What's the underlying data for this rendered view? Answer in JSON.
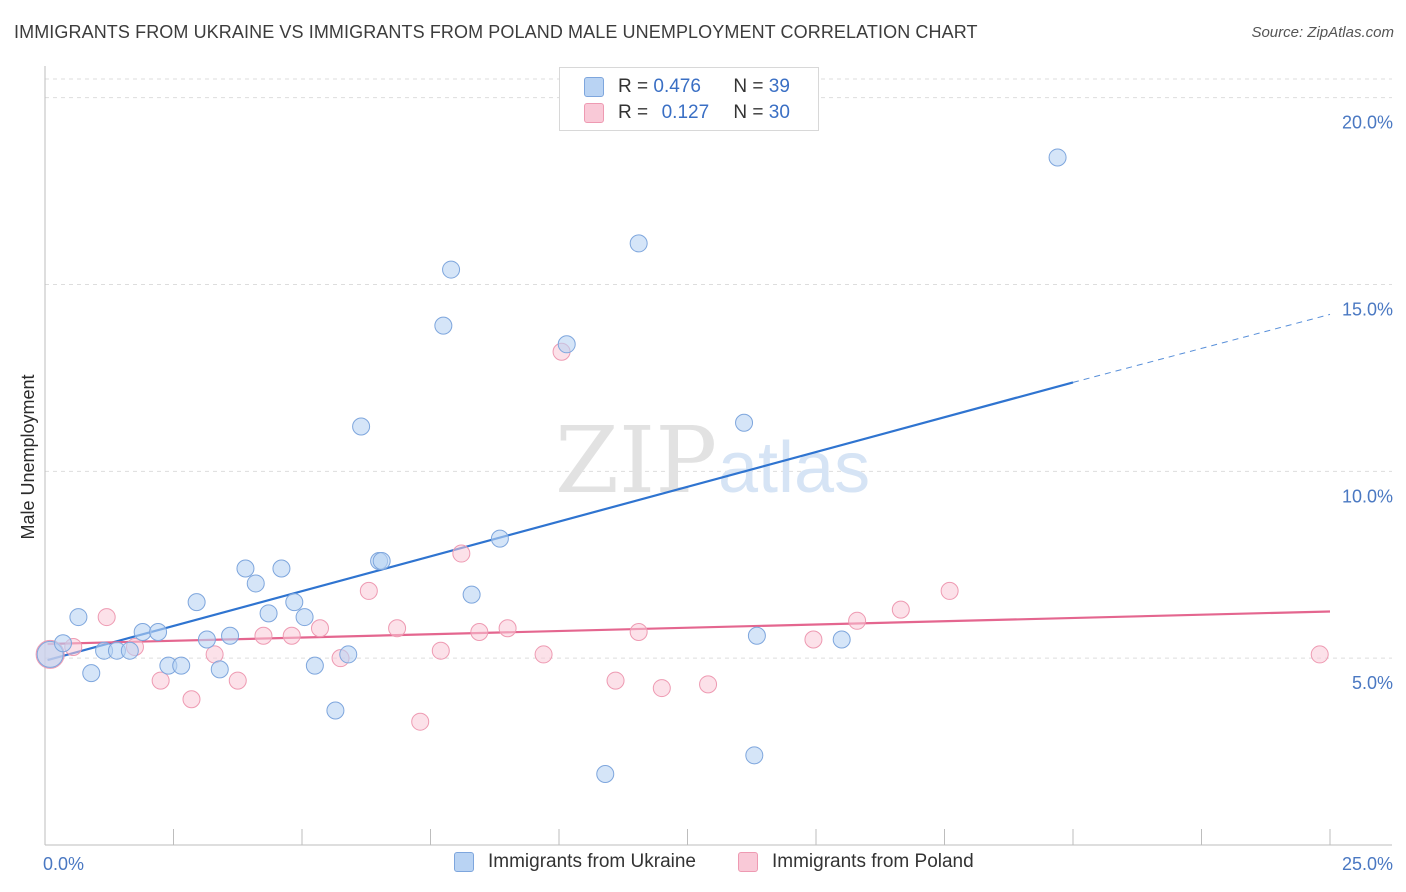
{
  "title": "IMMIGRANTS FROM UKRAINE VS IMMIGRANTS FROM POLAND MALE UNEMPLOYMENT CORRELATION CHART",
  "source": "Source: ZipAtlas.com",
  "watermark": {
    "zip": "ZIP",
    "atlas": "atlas"
  },
  "legend": {
    "ukraine": {
      "r_label": "R =",
      "r_value": "0.476",
      "n_label": "N =",
      "n_value": "39"
    },
    "poland": {
      "r_label": "R =",
      "r_value": "0.127",
      "n_label": "N =",
      "n_value": "30"
    }
  },
  "bottom_legend": {
    "ukraine": "Immigrants from Ukraine",
    "poland": "Immigrants from Poland"
  },
  "colors": {
    "ukraine_fill": "#b9d3f3",
    "ukraine_stroke": "#7ea6dd",
    "ukraine_line": "#2f74d0",
    "poland_fill": "#f9c9d7",
    "poland_stroke": "#ee9ab2",
    "poland_line": "#e4668f",
    "tick_text": "#4a78c2",
    "grid": "#dddddd"
  },
  "chart_data": {
    "type": "scatter",
    "title": "IMMIGRANTS FROM UKRAINE VS IMMIGRANTS FROM POLAND MALE UNEMPLOYMENT CORRELATION CHART",
    "xlabel": "",
    "ylabel": "Male Unemployment",
    "xlim": [
      0,
      25
    ],
    "ylim": [
      0,
      20.5
    ],
    "x_tick_labels": {
      "min": "0.0%",
      "max": "25.0%"
    },
    "y_ticks": [
      {
        "value": 5,
        "label": "5.0%"
      },
      {
        "value": 10,
        "label": "10.0%"
      },
      {
        "value": 15,
        "label": "15.0%"
      },
      {
        "value": 20,
        "label": "20.0%"
      }
    ],
    "series": [
      {
        "name": "Immigrants from Ukraine",
        "points": [
          [
            0.1,
            5.1
          ],
          [
            0.35,
            5.4
          ],
          [
            0.65,
            6.1
          ],
          [
            0.9,
            4.6
          ],
          [
            1.15,
            5.2
          ],
          [
            1.4,
            5.2
          ],
          [
            1.65,
            5.2
          ],
          [
            1.9,
            5.7
          ],
          [
            2.2,
            5.7
          ],
          [
            2.4,
            4.8
          ],
          [
            2.65,
            4.8
          ],
          [
            2.95,
            6.5
          ],
          [
            3.15,
            5.5
          ],
          [
            3.4,
            4.7
          ],
          [
            3.6,
            5.6
          ],
          [
            3.9,
            7.4
          ],
          [
            4.1,
            7.0
          ],
          [
            4.35,
            6.2
          ],
          [
            4.6,
            7.4
          ],
          [
            4.85,
            6.5
          ],
          [
            5.05,
            6.1
          ],
          [
            5.25,
            4.8
          ],
          [
            5.65,
            3.6
          ],
          [
            5.9,
            5.1
          ],
          [
            6.15,
            11.2
          ],
          [
            6.5,
            7.6
          ],
          [
            6.55,
            7.6
          ],
          [
            7.75,
            13.9
          ],
          [
            7.9,
            15.4
          ],
          [
            8.3,
            6.7
          ],
          [
            8.85,
            8.2
          ],
          [
            10.15,
            13.4
          ],
          [
            10.9,
            1.9
          ],
          [
            11.55,
            16.1
          ],
          [
            13.6,
            11.3
          ],
          [
            13.8,
            2.4
          ],
          [
            13.85,
            5.6
          ],
          [
            15.5,
            5.5
          ],
          [
            19.7,
            18.4
          ]
        ],
        "trend": {
          "x0": 0.05,
          "y0": 4.95,
          "x_solid_end": 20.0,
          "y_solid_end": 12.38,
          "x1": 25.0,
          "y1": 14.2
        }
      },
      {
        "name": "Immigrants from Poland",
        "points": [
          [
            0.1,
            5.1
          ],
          [
            0.55,
            5.3
          ],
          [
            1.2,
            6.1
          ],
          [
            1.75,
            5.3
          ],
          [
            2.25,
            4.4
          ],
          [
            2.85,
            3.9
          ],
          [
            3.3,
            5.1
          ],
          [
            3.75,
            4.4
          ],
          [
            4.25,
            5.6
          ],
          [
            4.8,
            5.6
          ],
          [
            5.35,
            5.8
          ],
          [
            5.75,
            5.0
          ],
          [
            6.3,
            6.8
          ],
          [
            6.85,
            5.8
          ],
          [
            7.3,
            3.3
          ],
          [
            7.7,
            5.2
          ],
          [
            8.1,
            7.8
          ],
          [
            8.45,
            5.7
          ],
          [
            9.0,
            5.8
          ],
          [
            9.7,
            5.1
          ],
          [
            10.05,
            13.2
          ],
          [
            11.1,
            4.4
          ],
          [
            11.55,
            5.7
          ],
          [
            12.0,
            4.2
          ],
          [
            12.9,
            4.3
          ],
          [
            14.95,
            5.5
          ],
          [
            15.8,
            6.0
          ],
          [
            16.65,
            6.3
          ],
          [
            17.6,
            6.8
          ],
          [
            24.8,
            5.1
          ]
        ],
        "trend": {
          "x0": 0.05,
          "y0": 5.38,
          "x1": 25.0,
          "y1": 6.25
        }
      }
    ]
  }
}
